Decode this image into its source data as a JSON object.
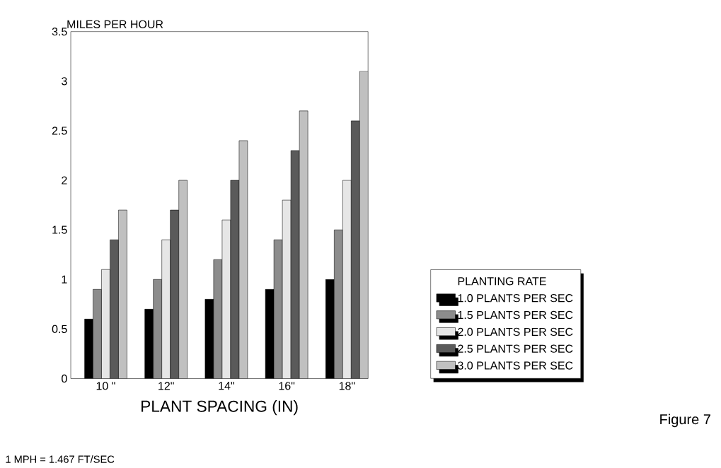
{
  "chart_data": {
    "type": "bar",
    "ylabel": "MILES PER HOUR",
    "xlabel": "PLANT SPACING (IN)",
    "legend_title": "PLANTING RATE",
    "categories": [
      "10 \"",
      "12\"",
      "14\"",
      "16\"",
      "18\""
    ],
    "series": [
      {
        "name": "1.0 PLANTS PER SEC",
        "color": "#000000",
        "values": [
          0.6,
          0.7,
          0.8,
          0.9,
          1.0
        ]
      },
      {
        "name": "1.5 PLANTS PER SEC",
        "color": "#8c8c8c",
        "values": [
          0.9,
          1.0,
          1.2,
          1.4,
          1.5
        ]
      },
      {
        "name": "2.0 PLANTS PER SEC",
        "color": "#e6e6e6",
        "values": [
          1.1,
          1.4,
          1.6,
          1.8,
          2.0
        ]
      },
      {
        "name": "2.5 PLANTS PER SEC",
        "color": "#5a5a5a",
        "values": [
          1.4,
          1.7,
          2.0,
          2.3,
          2.6
        ]
      },
      {
        "name": "3.0 PLANTS PER SEC",
        "color": "#c0c0c0",
        "values": [
          1.7,
          2.0,
          2.4,
          2.7,
          3.1
        ]
      }
    ],
    "ylim": [
      0,
      3.5
    ],
    "yticks": [
      0,
      0.5,
      1,
      1.5,
      2,
      2.5,
      3,
      3.5
    ],
    "legend": "right",
    "grid": false,
    "annotations": [
      "1 MPH = 1.467 FT/SEC",
      "Figure 7"
    ]
  }
}
